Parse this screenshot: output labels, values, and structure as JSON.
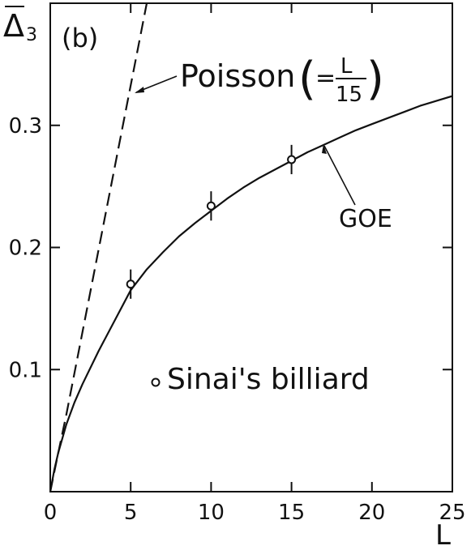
{
  "chart_data": {
    "type": "line",
    "panel_label": "(b)",
    "title": "",
    "xlabel": "L",
    "ylabel": "Δ̄3",
    "xlim": [
      0,
      25
    ],
    "ylim": [
      0,
      0.4
    ],
    "x_ticks": [
      0,
      5,
      10,
      15,
      20,
      25
    ],
    "x_tick_labels": [
      "0",
      "5",
      "10",
      "15",
      "20",
      "25"
    ],
    "y_ticks": [
      0.1,
      0.2,
      0.3
    ],
    "y_tick_labels": [
      "0.1",
      "0.2",
      "0.3"
    ],
    "grid": false,
    "series": [
      {
        "name": "GOE",
        "style": "solid",
        "x": [
          0,
          0.25,
          0.5,
          1,
          1.5,
          2,
          3,
          4,
          5,
          6,
          7,
          8,
          9,
          10,
          11,
          12,
          13,
          14,
          15,
          16,
          17,
          18,
          19,
          20,
          21,
          22,
          23,
          24,
          25
        ],
        "y": [
          0,
          0.018,
          0.032,
          0.055,
          0.073,
          0.088,
          0.115,
          0.14,
          0.165,
          0.182,
          0.196,
          0.209,
          0.22,
          0.23,
          0.24,
          0.249,
          0.257,
          0.264,
          0.271,
          0.278,
          0.284,
          0.29,
          0.296,
          0.301,
          0.306,
          0.311,
          0.316,
          0.32,
          0.324
        ]
      },
      {
        "name": "Poisson",
        "style": "dashed",
        "label_main": "Poisson",
        "label_eq": "=",
        "label_num": "L",
        "label_den": "15",
        "x": [
          0,
          0.5,
          1,
          6.1
        ],
        "y": [
          0,
          0.032,
          0.063,
          0.4067
        ]
      },
      {
        "name": "Sinai's billiard",
        "style": "points",
        "label": "Sinai's billiard",
        "x": [
          5,
          10,
          15
        ],
        "y": [
          0.17,
          0.234,
          0.272
        ],
        "err": [
          0.012,
          0.012,
          0.012
        ]
      }
    ]
  }
}
